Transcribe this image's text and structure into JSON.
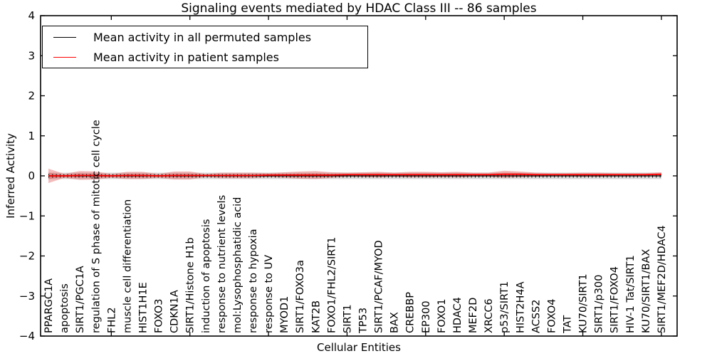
{
  "figure": {
    "title": "Signaling events mediated by HDAC Class III -- 86 samples",
    "xlabel": "Cellular Entities",
    "ylabel": "Inferred Activity"
  },
  "legend": {
    "items": [
      {
        "label": "Mean activity in all permuted samples",
        "color": "#000000"
      },
      {
        "label": "Mean activity in patient samples",
        "color": "#ff0000"
      }
    ]
  },
  "chart_data": {
    "type": "line",
    "title": "Signaling events mediated by HDAC Class III -- 86 samples",
    "xlabel": "Cellular Entities",
    "ylabel": "Inferred Activity",
    "grid": false,
    "legend_position": "upper left",
    "ylim": [
      -4,
      4
    ],
    "xlim": [
      0.5,
      41
    ],
    "ytick_values": [
      4,
      3,
      2,
      1,
      0,
      -1,
      -2,
      -3,
      -4
    ],
    "ytick_labels": [
      "4",
      "3",
      "2",
      "1",
      "0",
      "−1",
      "−2",
      "−3",
      "−4"
    ],
    "xtick_values": [
      5,
      10,
      15,
      20,
      25,
      30,
      35,
      40
    ],
    "x_positions": [
      1,
      2,
      3,
      4,
      5,
      6,
      7,
      8,
      9,
      10,
      11,
      12,
      13,
      14,
      15,
      16,
      17,
      18,
      19,
      20,
      21,
      22,
      23,
      24,
      25,
      26,
      27,
      28,
      29,
      30,
      31,
      32,
      33,
      34,
      35,
      36,
      37,
      38,
      39,
      40
    ],
    "categories": [
      "PPARGC1A",
      "apoptosis",
      "SIRT1/PGC1A",
      "regulation of S phase of mitotic cell cycle",
      "FHL2",
      "muscle cell differentiation",
      "HIST1H1E",
      "FOXO3",
      "CDKN1A",
      "SIRT1/Histone H1b",
      "induction of apoptosis",
      "response to nutrient levels",
      "mol:Lysophosphatidic acid",
      "response to hypoxia",
      "response to UV",
      "MYOD1",
      "SIRT1/FOXO3a",
      "KAT2B",
      "FOXO1/FHL2/SIRT1",
      "SIRT1",
      "TP53",
      "SIRT1/PCAF/MYOD",
      "BAX",
      "CREBBP",
      "EP300",
      "FOXO1",
      "HDAC4",
      "MEF2D",
      "XRCC6",
      "p53/SIRT1",
      "HIST2H4A",
      "ACSS2",
      "FOXO4",
      "TAT",
      "KU70/SIRT1",
      "SIRT1/p300",
      "SIRT1/FOXO4",
      "HIV-1 Tat/SIRT1",
      "KU70/SIRT1/BAX",
      "SIRT1/MEF2D/HDAC4"
    ],
    "series": [
      {
        "name": "Mean activity in all permuted samples",
        "color": "#000000",
        "band_color": "#999999",
        "values": [
          0,
          0,
          0,
          0,
          0,
          0,
          0,
          0,
          0,
          0,
          0,
          0,
          0,
          0,
          0,
          0,
          0,
          0,
          0,
          0,
          0,
          0,
          0,
          0,
          0,
          0,
          0,
          0,
          0,
          0,
          0,
          0,
          0,
          0,
          0,
          0,
          0,
          0,
          0,
          0
        ],
        "band_halfwidth": 0.08
      },
      {
        "name": "Mean activity in patient samples",
        "color": "#ff0000",
        "band_color": "#e05555",
        "values": [
          0,
          0,
          0.01,
          0.01,
          0,
          0.01,
          0.01,
          0,
          0.01,
          0.01,
          0.01,
          0.01,
          0.01,
          0.01,
          0.02,
          0.02,
          0.02,
          0.02,
          0.02,
          0.03,
          0.03,
          0.03,
          0.03,
          0.03,
          0.03,
          0.03,
          0.03,
          0.03,
          0.03,
          0.04,
          0.04,
          0.03,
          0.03,
          0.03,
          0.03,
          0.03,
          0.03,
          0.03,
          0.03,
          0.04
        ],
        "band_halfwidth": [
          0.18,
          0.05,
          0.11,
          0.1,
          0.05,
          0.09,
          0.09,
          0.05,
          0.1,
          0.1,
          0.04,
          0.07,
          0.07,
          0.07,
          0.05,
          0.07,
          0.09,
          0.1,
          0.07,
          0.05,
          0.06,
          0.07,
          0.05,
          0.07,
          0.07,
          0.06,
          0.07,
          0.05,
          0.05,
          0.09,
          0.07,
          0.05,
          0.04,
          0.04,
          0.05,
          0.05,
          0.04,
          0.04,
          0.04,
          0.05
        ]
      }
    ]
  }
}
